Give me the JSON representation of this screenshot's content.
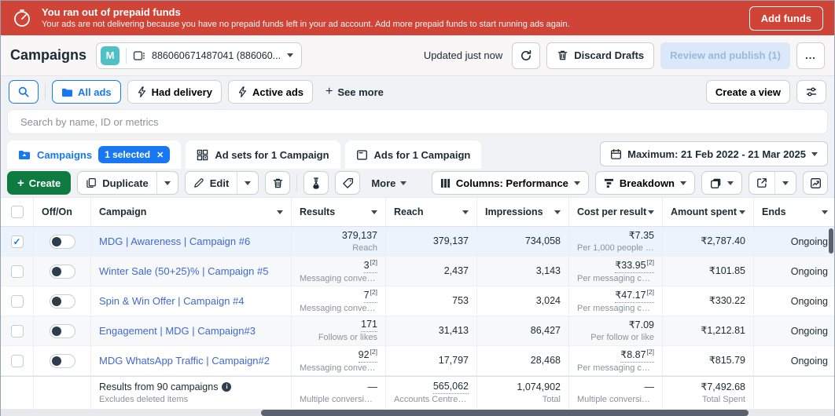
{
  "colors": {
    "accent": "#1877f2",
    "banner_red": "#cf4437",
    "create_green": "#0e7c40",
    "link_blue": "#4069d0",
    "badge_teal": "#4fc1c6"
  },
  "banner": {
    "title": "You ran out of prepaid funds",
    "subtitle": "Your ads are not delivering because you have no prepaid funds left in your ad account. Add more prepaid funds to start running ads again.",
    "action": "Add funds"
  },
  "header": {
    "title": "Campaigns",
    "account_badge": "M",
    "account_name": "886060671487041 (886060...",
    "updated": "Updated just now",
    "discard": "Discard Drafts",
    "review": "Review and publish (1)",
    "overflow": "..."
  },
  "filters": {
    "all_ads": "All ads",
    "had_delivery": "Had delivery",
    "active_ads": "Active ads",
    "see_more": "See more",
    "create_view": "Create a view"
  },
  "search": {
    "placeholder": "Search by name, ID or metrics"
  },
  "tabs": {
    "campaigns": "Campaigns",
    "selected_badge": "1 selected",
    "ad_sets": "Ad sets for 1 Campaign",
    "ads": "Ads for 1 Campaign",
    "date_range": "Maximum: 21 Feb 2022 - 21 Mar 2025"
  },
  "toolbar": {
    "create": "Create",
    "duplicate": "Duplicate",
    "edit": "Edit",
    "more": "More",
    "columns": "Columns: Performance",
    "breakdown": "Breakdown"
  },
  "table": {
    "headers": [
      "Off/On",
      "Campaign",
      "Results",
      "Reach",
      "Impressions",
      "Cost per result",
      "Amount spent",
      "Ends"
    ],
    "rows": [
      {
        "selected": true,
        "name": "MDG | Awareness | Campaign #6",
        "results": "379,137",
        "results_note": "",
        "results_dotted": false,
        "results_label": "Reach",
        "reach": "379,137",
        "impressions": "734,058",
        "cpr": "₹7.35",
        "cpr_note": "",
        "cpr_dotted": false,
        "cpr_label": "Per 1,000 people reach...",
        "spent": "₹2,787.40",
        "ends": "Ongoing"
      },
      {
        "selected": false,
        "name": "Winter Sale (50+25)% | Campaign #5",
        "results": "3",
        "results_note": "[2]",
        "results_dotted": true,
        "results_label": "Messaging conversa...",
        "reach": "2,437",
        "impressions": "3,143",
        "cpr": "₹33.95",
        "cpr_note": "[2]",
        "cpr_dotted": true,
        "cpr_label": "Per messaging conv...",
        "spent": "₹101.85",
        "ends": "Ongoing"
      },
      {
        "selected": false,
        "name": "Spin & Win Offer | Campaign #4",
        "results": "7",
        "results_note": "[2]",
        "results_dotted": true,
        "results_label": "Messaging conversa...",
        "reach": "753",
        "impressions": "3,024",
        "cpr": "₹47.17",
        "cpr_note": "[2]",
        "cpr_dotted": true,
        "cpr_label": "Per messaging conv...",
        "spent": "₹330.22",
        "ends": "Ongoing"
      },
      {
        "selected": false,
        "name": "Engagement | MDG | Campaign#3",
        "results": "171",
        "results_note": "",
        "results_dotted": true,
        "results_label": "Follows or likes",
        "reach": "31,413",
        "impressions": "86,427",
        "cpr": "₹7.09",
        "cpr_note": "",
        "cpr_dotted": false,
        "cpr_label": "Per follow or like",
        "spent": "₹1,212.81",
        "ends": "Ongoing"
      },
      {
        "selected": false,
        "name": "MDG WhatsApp Traffic | Campaign#2",
        "results": "92",
        "results_note": "[2]",
        "results_dotted": true,
        "results_label": "Messaging conversa...",
        "reach": "17,797",
        "impressions": "28,468",
        "cpr": "₹8.87",
        "cpr_note": "[2]",
        "cpr_dotted": true,
        "cpr_label": "Per messaging conv...",
        "spent": "₹815.79",
        "ends": "Ongoing"
      }
    ],
    "footer": {
      "title": "Results from 90 campaigns",
      "subtitle": "Excludes deleted items",
      "results": {
        "value": "—",
        "label": "Multiple conversions"
      },
      "reach": {
        "value": "565,062",
        "label": "Accounts Centre accou..."
      },
      "impressions": {
        "value": "1,074,902",
        "label": "Total"
      },
      "cpr": {
        "value": "—",
        "label": "Multiple conversions"
      },
      "spent": {
        "value": "₹7,492.68",
        "label": "Total Spent"
      }
    }
  }
}
